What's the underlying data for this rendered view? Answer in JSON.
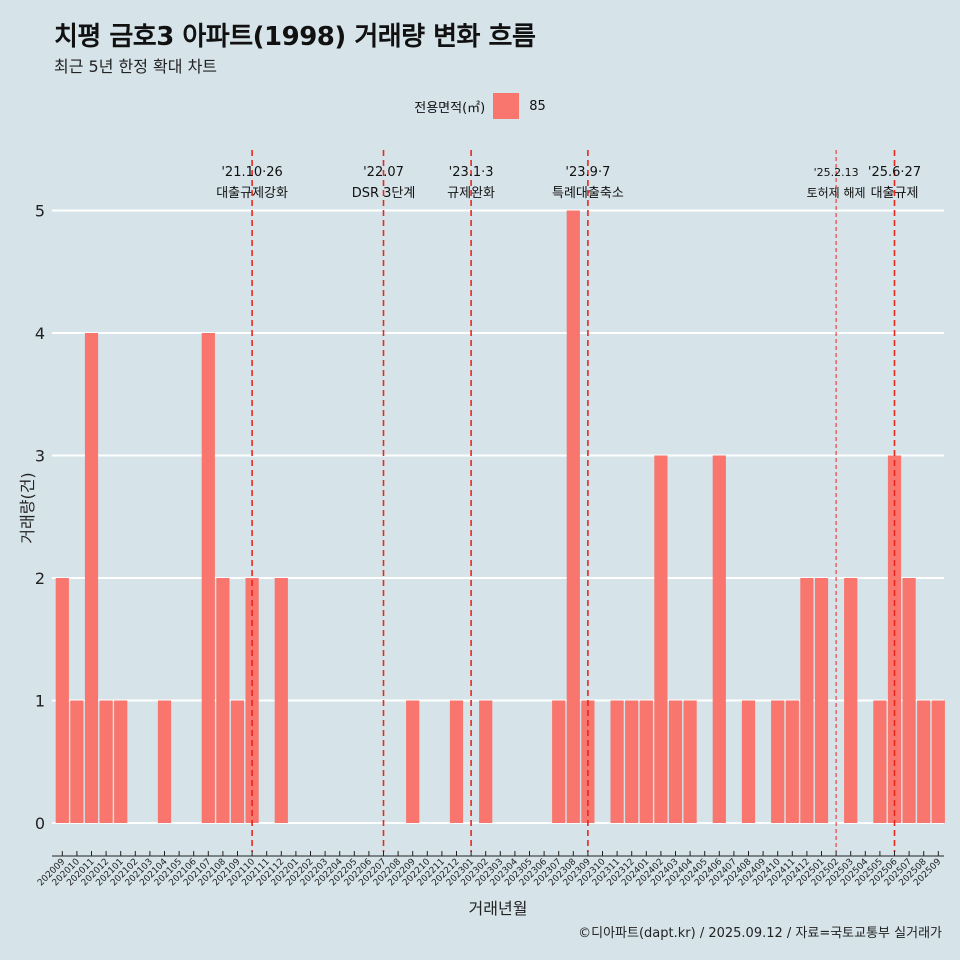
{
  "title": "치평 금호3 아파트(1998) 거래량 변화 흐름",
  "subtitle": "최근 5년 한정 확대 차트",
  "footer": "©디아파트(dapt.kr) / 2025.09.12 / 자료=국토교통부 실거래가",
  "colors": {
    "background": "#d6e4ea",
    "bar": "#f8766d",
    "event_line": "#e8271f"
  },
  "chart_data": {
    "type": "bar",
    "xlabel": "거래년월",
    "ylabel": "거래량(건)",
    "ylim": [
      0,
      5
    ],
    "yticks": [
      0,
      1,
      2,
      3,
      4,
      5
    ],
    "legend": {
      "title": "전용면적(㎡)",
      "position": "top",
      "entries": [
        {
          "name": "85",
          "color": "#f8766d"
        }
      ]
    },
    "categories": [
      "202009",
      "202010",
      "202011",
      "202012",
      "202101",
      "202102",
      "202103",
      "202104",
      "202105",
      "202106",
      "202107",
      "202108",
      "202109",
      "202110",
      "202111",
      "202112",
      "202201",
      "202202",
      "202203",
      "202204",
      "202205",
      "202206",
      "202207",
      "202208",
      "202209",
      "202210",
      "202211",
      "202212",
      "202301",
      "202302",
      "202303",
      "202304",
      "202305",
      "202306",
      "202307",
      "202308",
      "202309",
      "202310",
      "202311",
      "202312",
      "202401",
      "202402",
      "202403",
      "202404",
      "202405",
      "202406",
      "202407",
      "202408",
      "202409",
      "202410",
      "202411",
      "202412",
      "202501",
      "202502",
      "202503",
      "202504",
      "202505",
      "202506",
      "202507",
      "202508",
      "202509"
    ],
    "series": [
      {
        "name": "85",
        "values": [
          2,
          1,
          4,
          1,
          1,
          null,
          null,
          1,
          null,
          null,
          4,
          2,
          1,
          2,
          null,
          2,
          null,
          null,
          null,
          null,
          null,
          null,
          null,
          null,
          1,
          null,
          null,
          1,
          null,
          1,
          null,
          null,
          null,
          null,
          1,
          5,
          1,
          null,
          1,
          1,
          1,
          3,
          1,
          1,
          null,
          3,
          null,
          1,
          null,
          1,
          1,
          2,
          2,
          null,
          2,
          null,
          1,
          3,
          2,
          1,
          1
        ]
      }
    ],
    "events": [
      {
        "x": "202110",
        "date": "'21.10·26",
        "label": "대출규제강화",
        "style": "dashed"
      },
      {
        "x": "202207",
        "date": "'22.07",
        "label": "DSR 3단계",
        "style": "dashed"
      },
      {
        "x": "202301",
        "date": "'23.1·3",
        "label": "규제완화",
        "style": "dashed"
      },
      {
        "x": "202309",
        "date": "'23.9·7",
        "label": "특례대출축소",
        "style": "dashed"
      },
      {
        "x": "202502",
        "date": "'25.2.13",
        "label": "토허제 해제",
        "style": "thin-dashed"
      },
      {
        "x": "202506",
        "date": "'25.6·27",
        "label": "대출규제",
        "style": "dashed"
      }
    ]
  }
}
